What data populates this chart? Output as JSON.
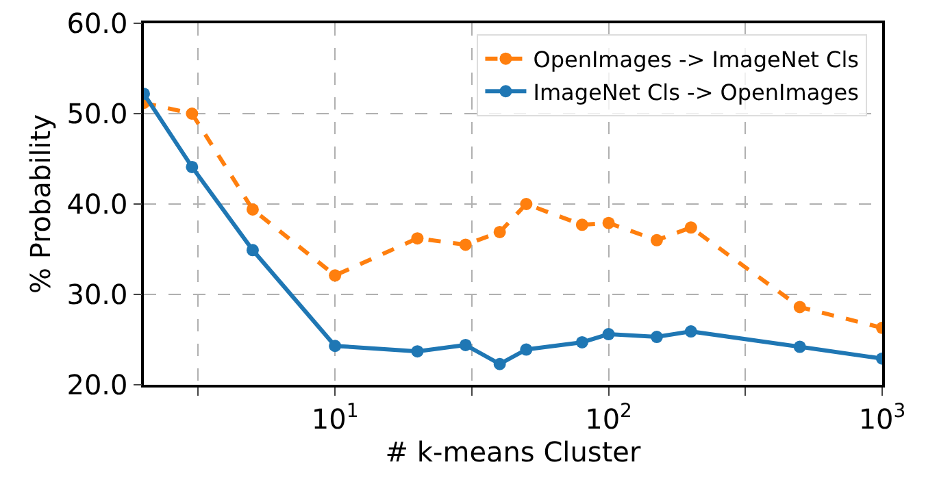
{
  "chart_data": {
    "type": "line",
    "xlabel": "# k-means Cluster",
    "ylabel": "% Probability",
    "log": "x",
    "grid": true,
    "legend": "top right",
    "marker": "circle",
    "x": [
      2,
      3,
      5,
      10,
      20,
      30,
      40,
      50,
      80,
      100,
      150,
      200,
      500,
      1000
    ],
    "xlim": [
      2,
      1000
    ],
    "xticks": [
      {
        "value": 3.16,
        "label": null
      },
      {
        "value": 10,
        "label": "10$^{1}$"
      },
      {
        "value": 31.6,
        "label": null
      },
      {
        "value": 100,
        "label": "10$^{2}$"
      },
      {
        "value": 316,
        "label": null
      },
      {
        "value": 1000,
        "label": "10$^{3}$"
      }
    ],
    "ylim": [
      20,
      60
    ],
    "yticks": [
      {
        "value": 20,
        "label": "20.0"
      },
      {
        "value": 30,
        "label": "30.0"
      },
      {
        "value": 40,
        "label": "40.0"
      },
      {
        "value": 50,
        "label": "50.0"
      },
      {
        "value": 60,
        "label": "60.0"
      }
    ],
    "series": [
      {
        "name": "OpenImages -> ImageNet Cls",
        "color": "#ff7f0e",
        "line_style": "dashed",
        "values": [
          51.2,
          50.0,
          39.4,
          32.1,
          36.2,
          35.5,
          36.9,
          40.0,
          37.7,
          37.9,
          36.0,
          37.4,
          28.6,
          26.3
        ]
      },
      {
        "name": "ImageNet Cls -> OpenImages",
        "color": "#1f77b4",
        "line_style": "solid",
        "values": [
          52.2,
          44.1,
          34.9,
          24.3,
          23.7,
          24.4,
          22.3,
          23.9,
          24.7,
          25.6,
          25.3,
          25.9,
          24.2,
          22.9
        ]
      }
    ]
  }
}
